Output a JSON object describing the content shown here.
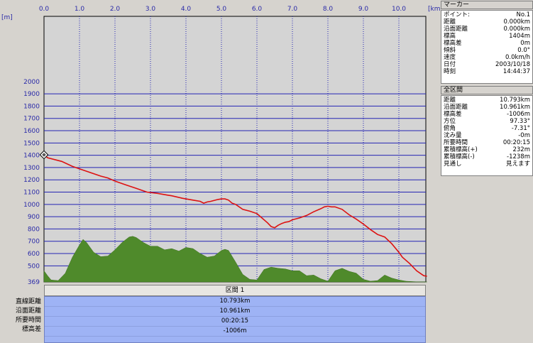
{
  "chart_data": {
    "type": "area",
    "x_unit": "[km]",
    "y_unit": "[m]",
    "xlim": [
      0,
      10.793
    ],
    "ylim": [
      369,
      2000
    ],
    "x_ticks": [
      "0.0",
      "1.0",
      "2.0",
      "3.0",
      "4.0",
      "5.0",
      "6.0",
      "7.0",
      "8.0",
      "9.0",
      "10.0"
    ],
    "y_ticks": [
      "2000",
      "1900",
      "1800",
      "1700",
      "1600",
      "1500",
      "1400",
      "1300",
      "1200",
      "1100",
      "1000",
      "900",
      "800",
      "700",
      "600",
      "500",
      "369"
    ],
    "elevation_profile": {
      "color": "#dd1111",
      "x": [
        0,
        0.1,
        0.5,
        0.8,
        1.0,
        1.3,
        1.6,
        1.8,
        2.0,
        2.3,
        2.6,
        2.8,
        2.9,
        3.2,
        3.5,
        3.6,
        3.9,
        4.2,
        4.4,
        4.5,
        4.6,
        4.7,
        4.9,
        5.0,
        5.1,
        5.2,
        5.3,
        5.4,
        5.6,
        5.8,
        6.0,
        6.1,
        6.3,
        6.4,
        6.5,
        6.6,
        6.7,
        6.8,
        6.9,
        7.0,
        7.2,
        7.4,
        7.6,
        7.8,
        7.9,
        8.0,
        8.1,
        8.2,
        8.4,
        8.6,
        8.8,
        9.0,
        9.2,
        9.4,
        9.6,
        9.8,
        10.0,
        10.1,
        10.3,
        10.5,
        10.7,
        10.793
      ],
      "y": [
        1404,
        1380,
        1350,
        1310,
        1290,
        1260,
        1230,
        1215,
        1190,
        1160,
        1130,
        1110,
        1100,
        1090,
        1075,
        1070,
        1050,
        1035,
        1025,
        1010,
        1020,
        1025,
        1040,
        1045,
        1045,
        1035,
        1010,
        1000,
        960,
        945,
        925,
        900,
        850,
        820,
        810,
        830,
        845,
        855,
        860,
        875,
        890,
        910,
        940,
        965,
        980,
        985,
        980,
        980,
        960,
        915,
        880,
        840,
        795,
        755,
        735,
        680,
        610,
        570,
        520,
        460,
        420,
        415
      ]
    },
    "terrain_section": {
      "color": "#4f8a2b",
      "x": [
        0,
        0.1,
        0.2,
        0.4,
        0.6,
        0.8,
        1.0,
        1.1,
        1.2,
        1.4,
        1.6,
        1.8,
        2.0,
        2.2,
        2.4,
        2.5,
        2.6,
        2.8,
        3.0,
        3.2,
        3.4,
        3.6,
        3.8,
        4.0,
        4.2,
        4.4,
        4.6,
        4.8,
        5.0,
        5.1,
        5.2,
        5.4,
        5.6,
        5.8,
        6.0,
        6.2,
        6.4,
        6.6,
        6.8,
        7.0,
        7.2,
        7.4,
        7.6,
        7.8,
        8.0,
        8.2,
        8.4,
        8.6,
        8.8,
        9.0,
        9.2,
        9.4,
        9.6,
        9.8,
        10.0,
        10.2,
        10.5,
        10.793
      ],
      "y": [
        460,
        420,
        385,
        380,
        440,
        570,
        670,
        715,
        690,
        610,
        575,
        580,
        630,
        690,
        735,
        740,
        730,
        690,
        660,
        660,
        630,
        640,
        620,
        650,
        640,
        600,
        570,
        580,
        625,
        635,
        625,
        530,
        430,
        390,
        385,
        470,
        490,
        480,
        475,
        460,
        460,
        420,
        425,
        395,
        375,
        460,
        480,
        455,
        440,
        390,
        375,
        380,
        425,
        400,
        385,
        375,
        370,
        369
      ]
    },
    "marker": {
      "x": 0.0,
      "y": 1404
    }
  },
  "marker_panel": {
    "title": "マーカー",
    "rows": [
      {
        "label": "ポイント:",
        "value": "No.1"
      },
      {
        "label": "距離",
        "value": "0.000km"
      },
      {
        "label": "沿面距離",
        "value": "0.000km"
      },
      {
        "label": "標高",
        "value": "1404m"
      },
      {
        "label": "標高差",
        "value": "0m"
      },
      {
        "label": "傾斜",
        "value": "0.0°"
      },
      {
        "label": "速度",
        "value": "0.0km/h"
      },
      {
        "label": "日付",
        "value": "2003/10/18"
      },
      {
        "label": "時刻",
        "value": "14:44:37"
      }
    ]
  },
  "section_panel": {
    "title": "全区間",
    "rows": [
      {
        "label": "距離",
        "value": "10.793km"
      },
      {
        "label": "沿面距離",
        "value": "10.961km"
      },
      {
        "label": "標高差",
        "value": "-1006m"
      },
      {
        "label": "方位",
        "value": "97.33°"
      },
      {
        "label": "俯角",
        "value": "-7.31°"
      },
      {
        "label": "沈み量",
        "value": "-0m"
      },
      {
        "label": "所要時間",
        "value": "00:20:15"
      },
      {
        "label": "累積標高(+)",
        "value": "232m"
      },
      {
        "label": "累積標高(-)",
        "value": "-1238m"
      },
      {
        "label": "見通し",
        "value": "見えます"
      }
    ]
  },
  "section_table": {
    "header": "区間 1",
    "labels": [
      "直線距離",
      "沿面距離",
      "所要時間",
      "標高差"
    ],
    "values": [
      "10.793km",
      "10.961km",
      "00:20:15",
      "-1006m"
    ]
  }
}
